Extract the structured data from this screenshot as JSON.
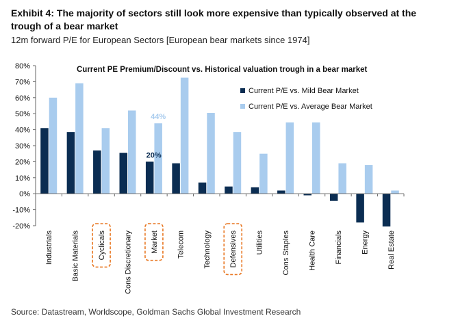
{
  "header": {
    "title": "Exhibit 4: The majority of sectors still look more expensive than typically observed at the trough of a bear market",
    "subtitle": "12m forward P/E for European Sectors [European bear markets since 1974]"
  },
  "footer": {
    "source": "Source: Datastream, Worldscope, Goldman Sachs Global Investment Research"
  },
  "chart_data": {
    "type": "bar",
    "title": "Current PE Premium/Discount vs. Historical valuation trough in a bear market",
    "xlabel": "",
    "ylabel": "",
    "ylim": [
      -0.2,
      0.8
    ],
    "y_ticks": [
      "80%",
      "70%",
      "60%",
      "50%",
      "40%",
      "30%",
      "20%",
      "10%",
      "0%",
      "-10%",
      "-20%"
    ],
    "y_tick_values": [
      0.8,
      0.7,
      0.6,
      0.5,
      0.4,
      0.3,
      0.2,
      0.1,
      0.0,
      -0.1,
      -0.2
    ],
    "grid": false,
    "legend_position": "top-right",
    "categories": [
      "Industrials",
      "Basic Materials",
      "Cyclicals",
      "Cons Discretionary",
      "Market",
      "Telecom",
      "Technology",
      "Defensives",
      "Utilities",
      "Cons Staples",
      "Health Care",
      "Financials",
      "Energy",
      "Real Estate"
    ],
    "highlighted_categories": [
      "Cyclicals",
      "Market",
      "Defensives"
    ],
    "highlight_color": "#E87722",
    "series": [
      {
        "name": "Current P/E vs. Mild Bear Market",
        "color": "#0B2D52",
        "values": [
          0.41,
          0.385,
          0.27,
          0.255,
          0.2,
          0.19,
          0.07,
          0.045,
          0.04,
          0.02,
          -0.01,
          -0.045,
          -0.18,
          -0.205
        ]
      },
      {
        "name": "Current P/E vs. Average Bear Market",
        "color": "#A9CCEE",
        "values": [
          0.6,
          0.69,
          0.41,
          0.52,
          0.44,
          0.725,
          0.505,
          0.385,
          0.25,
          0.445,
          0.445,
          0.19,
          0.18,
          0.02
        ]
      }
    ],
    "data_labels": [
      {
        "series": 0,
        "category": "Market",
        "text": "20%",
        "color": "#0B2D52"
      },
      {
        "series": 1,
        "category": "Market",
        "text": "44%",
        "color": "#A9CCEE"
      }
    ]
  }
}
